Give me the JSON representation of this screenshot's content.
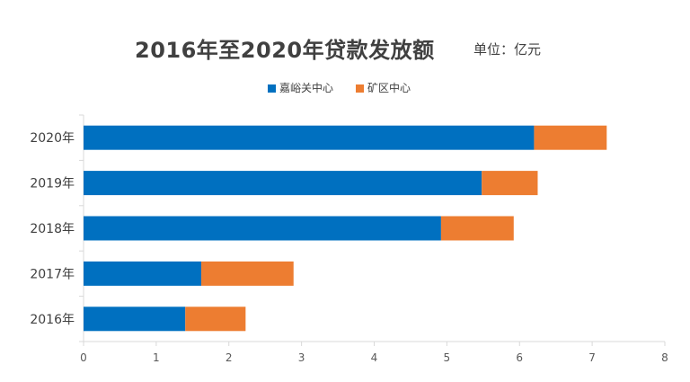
{
  "chart_data": {
    "type": "bar",
    "orientation": "horizontal",
    "stacked": true,
    "title": "2016年至2020年贷款发放额",
    "subtitle": "单位：亿元",
    "categories": [
      "2020年",
      "2019年",
      "2018年",
      "2017年",
      "2016年"
    ],
    "series": [
      {
        "name": "嘉峪关中心",
        "color": "#0070C0",
        "values": [
          6.2,
          5.48,
          4.92,
          1.62,
          1.4
        ]
      },
      {
        "name": "矿区中心",
        "color": "#ED7D31",
        "values": [
          1.0,
          0.77,
          1.0,
          1.27,
          0.83
        ]
      }
    ],
    "xlim": [
      0,
      8
    ],
    "xticks": [
      "0",
      "1",
      "2",
      "3",
      "4",
      "5",
      "6",
      "7",
      "8"
    ],
    "grid": false,
    "legend_position": "top"
  }
}
